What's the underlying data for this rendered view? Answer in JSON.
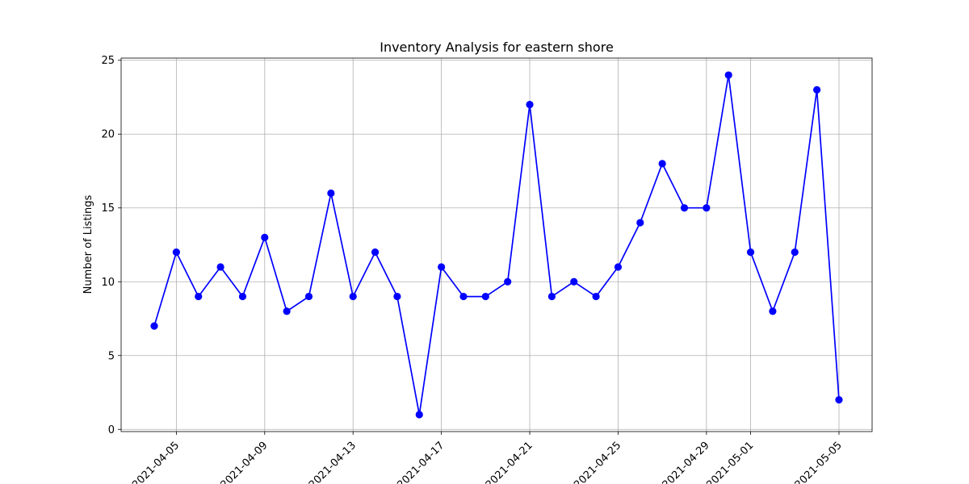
{
  "chart_data": {
    "type": "line",
    "title": "Inventory Analysis for eastern shore",
    "xlabel": "",
    "ylabel": "Number of Listings",
    "x": [
      "2021-04-04",
      "2021-04-05",
      "2021-04-06",
      "2021-04-07",
      "2021-04-08",
      "2021-04-09",
      "2021-04-10",
      "2021-04-11",
      "2021-04-12",
      "2021-04-13",
      "2021-04-14",
      "2021-04-15",
      "2021-04-16",
      "2021-04-17",
      "2021-04-18",
      "2021-04-19",
      "2021-04-20",
      "2021-04-21",
      "2021-04-22",
      "2021-04-23",
      "2021-04-24",
      "2021-04-25",
      "2021-04-26",
      "2021-04-27",
      "2021-04-28",
      "2021-04-29",
      "2021-04-30",
      "2021-05-01",
      "2021-05-02",
      "2021-05-03",
      "2021-05-04",
      "2021-05-05"
    ],
    "series": [
      {
        "values": [
          7,
          12,
          9,
          11,
          9,
          13,
          8,
          9,
          16,
          9,
          12,
          9,
          1,
          11,
          9,
          9,
          10,
          22,
          9,
          10,
          9,
          11,
          14,
          18,
          15,
          15,
          24,
          12,
          8,
          12,
          23,
          2
        ],
        "color": "#0000ff",
        "marker": "circle"
      }
    ],
    "xticks": [
      "2021-04-05",
      "2021-04-09",
      "2021-04-13",
      "2021-04-17",
      "2021-04-21",
      "2021-04-25",
      "2021-04-29",
      "2021-05-01",
      "2021-05-05"
    ],
    "yticks": [
      0,
      5,
      10,
      15,
      20,
      25
    ],
    "xlim": [
      "2021-04-02T12:00",
      "2021-05-06T12:00"
    ],
    "ylim": [
      -0.15,
      25.15
    ],
    "grid": true,
    "x_tick_rotation": 45
  }
}
